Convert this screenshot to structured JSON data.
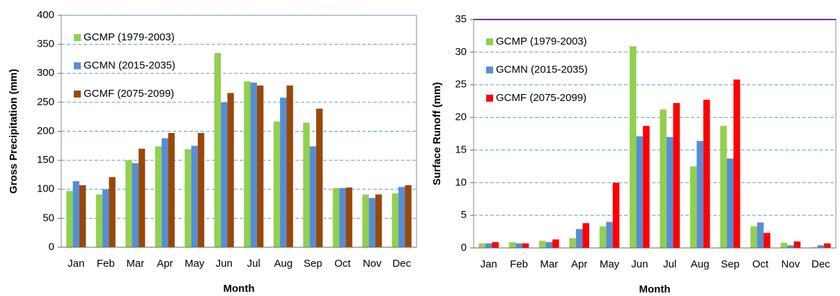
{
  "chart_data": [
    {
      "type": "bar",
      "x_label": "Month",
      "y_label": "Gross Precipitation (mm)",
      "categories": [
        "Jan",
        "Feb",
        "Mar",
        "Apr",
        "May",
        "Jun",
        "Jul",
        "Aug",
        "Sep",
        "Oct",
        "Nov",
        "Dec"
      ],
      "series": [
        {
          "name": "GCMP (1979-2003)",
          "color": "#92d050",
          "values": [
            97,
            91,
            150,
            174,
            169,
            335,
            286,
            217,
            215,
            102,
            91,
            93
          ]
        },
        {
          "name": "GCMN (2015-2035)",
          "color": "#558ed5",
          "values": [
            114,
            100,
            145,
            188,
            175,
            250,
            284,
            258,
            174,
            102,
            85,
            104
          ]
        },
        {
          "name": "GCMF (2075-2099)",
          "color": "#984807",
          "values": [
            107,
            121,
            170,
            197,
            197,
            266,
            279,
            279,
            239,
            103,
            91,
            107
          ]
        }
      ],
      "ylim": [
        0,
        400
      ],
      "yticks": [
        0,
        50,
        100,
        150,
        200,
        250,
        300,
        350,
        400
      ],
      "grid": true,
      "legend": "top-left"
    },
    {
      "type": "bar",
      "x_label": "Month",
      "y_label": "Surface Runoff (mm)",
      "categories": [
        "Jan",
        "Feb",
        "Mar",
        "Apr",
        "May",
        "Jun",
        "Jul",
        "Aug",
        "Sep",
        "Oct",
        "Nov",
        "Dec"
      ],
      "series": [
        {
          "name": "GCMP (1979-2003)",
          "color": "#92d050",
          "values": [
            0.7,
            0.9,
            1.1,
            1.5,
            3.3,
            30.9,
            21.2,
            12.5,
            18.7,
            3.3,
            0.8,
            0.1
          ]
        },
        {
          "name": "GCMN (2015-2035)",
          "color": "#558ed5",
          "values": [
            0.7,
            0.7,
            0.9,
            2.9,
            4.0,
            17.1,
            17.0,
            16.4,
            13.7,
            3.9,
            0.4,
            0.4
          ]
        },
        {
          "name": "GCMF (2075-2099)",
          "color": "#ff0000",
          "values": [
            0.9,
            0.7,
            1.3,
            3.8,
            10.0,
            18.7,
            22.2,
            22.7,
            25.8,
            2.3,
            1.0,
            0.7
          ]
        }
      ],
      "ylim": [
        0,
        35
      ],
      "yticks": [
        0,
        5,
        10,
        15,
        20,
        25,
        30,
        35
      ],
      "grid": true,
      "legend": "top-left"
    }
  ]
}
